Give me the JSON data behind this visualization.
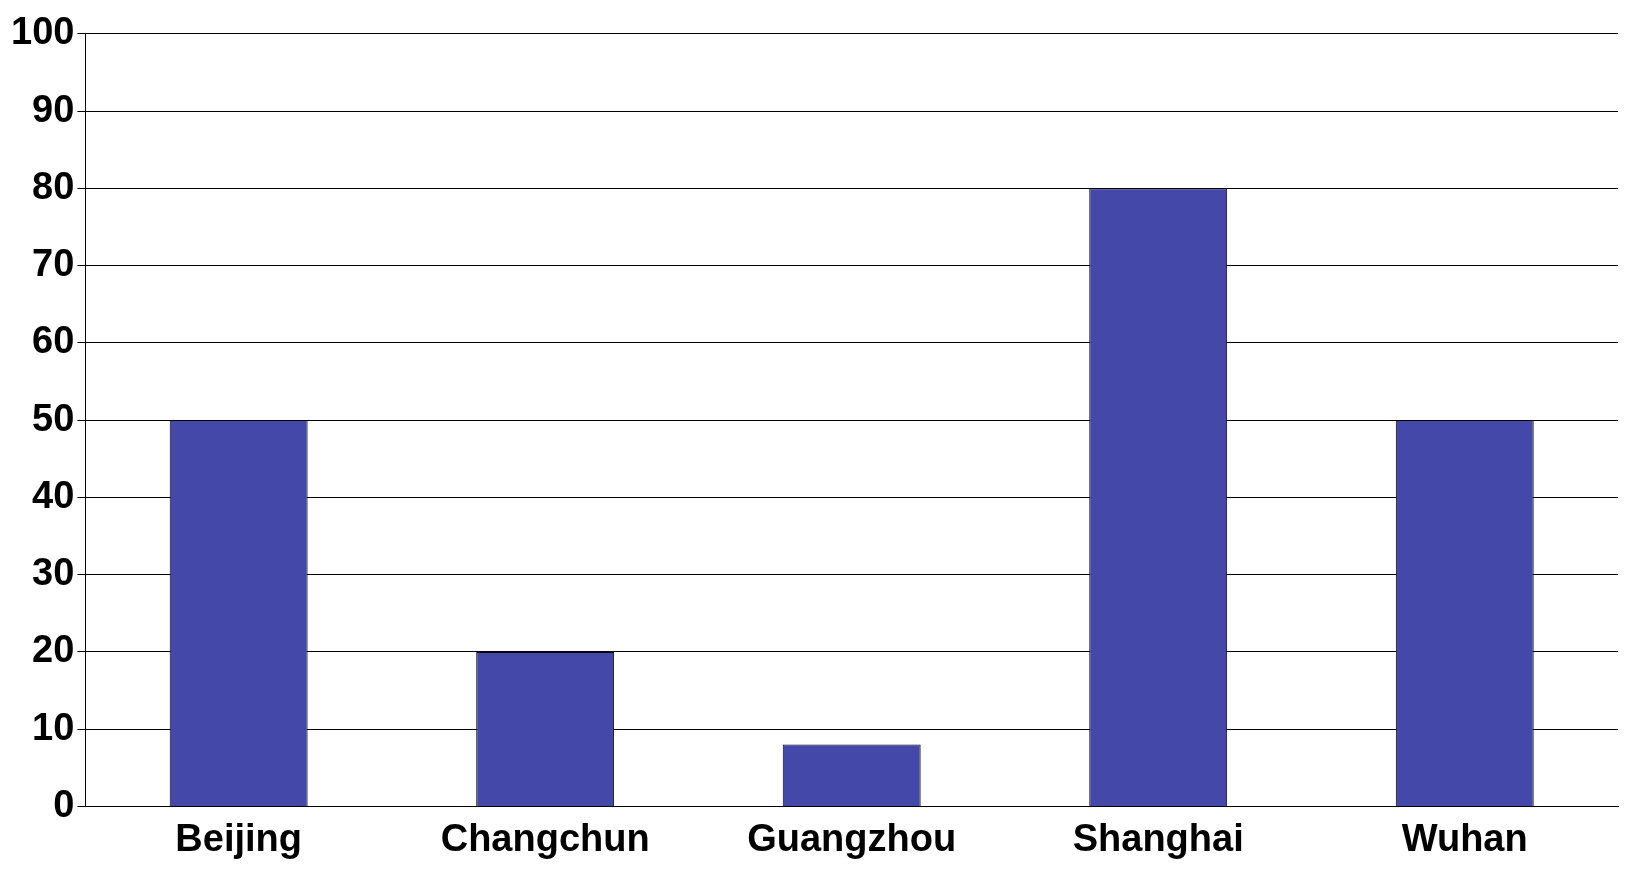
{
  "chart_data": {
    "type": "bar",
    "categories": [
      "Beijing",
      "Changchun",
      "Guangzhou",
      "Shanghai",
      "Wuhan"
    ],
    "values": [
      50,
      20,
      8,
      80,
      50
    ],
    "color": "#4448a8",
    "ylim": [
      0,
      100
    ],
    "yticks": [
      0,
      10,
      20,
      30,
      40,
      50,
      60,
      70,
      80,
      90,
      100
    ],
    "grid": "y",
    "legend": false
  }
}
